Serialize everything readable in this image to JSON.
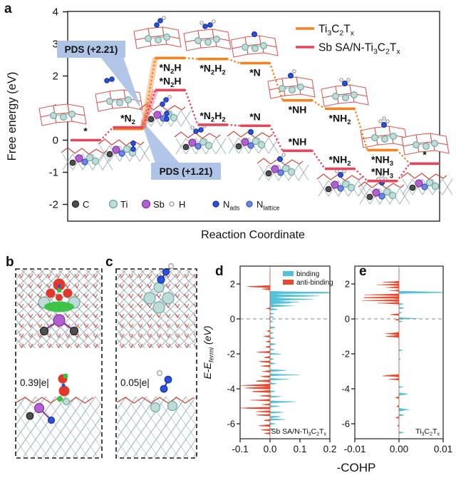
{
  "panel_labels": {
    "a": "a",
    "b": "b",
    "c": "c",
    "d": "d",
    "e": "e"
  },
  "panel_a": {
    "ylabel": "Free energy (eV)",
    "xlabel": "Reaction Coordinate",
    "yticks": [
      4,
      3,
      2,
      1,
      0,
      -1,
      -2
    ],
    "legend": [
      {
        "label": [
          "Ti",
          [
            "3"
          ],
          "C",
          [
            "2"
          ],
          "T",
          [
            "x"
          ]
        ],
        "color": "#F5821F"
      },
      {
        "label": [
          "Sb SA/N-Ti",
          [
            "3"
          ],
          "C",
          [
            "2"
          ],
          "T",
          [
            "x"
          ]
        ],
        "color": "#E6455A"
      }
    ],
    "pds": [
      {
        "text": "PDS (+2.21)",
        "color": "#F5821F"
      },
      {
        "text": "PDS (+1.21)",
        "color": "#E6455A"
      }
    ],
    "callout_bg": "#AEC3E6",
    "state_labels": [
      [
        "*"
      ],
      [
        "*N",
        [
          "2"
        ]
      ],
      [
        "*N",
        [
          "2"
        ],
        "H"
      ],
      [
        "*N",
        [
          "2"
        ],
        "H",
        [
          "2"
        ]
      ],
      [
        "*N"
      ],
      [
        "*NH"
      ],
      [
        "*NH",
        [
          "2"
        ]
      ],
      [
        "*NH",
        [
          "3"
        ]
      ],
      [
        "*"
      ]
    ],
    "atom_legend": [
      {
        "label": [
          "C"
        ],
        "fill": "#4F4F4F",
        "stroke": "#222222",
        "r": 4.5
      },
      {
        "label": [
          "Ti"
        ],
        "fill": "#BFDCD9",
        "stroke": "#6FA8A4",
        "r": 5.5
      },
      {
        "label": [
          "Sb"
        ],
        "fill": "#B15FD1",
        "stroke": "#84399F",
        "r": 5.5
      },
      {
        "label": [
          "H"
        ],
        "fill": "#FFFFFF",
        "stroke": "#999999",
        "r": 3
      },
      {
        "label": [
          "N",
          [
            "ads"
          ]
        ],
        "fill": "#2B50E0",
        "stroke": "#16339B",
        "r": 4
      },
      {
        "label": [
          "N",
          [
            "lattice"
          ]
        ],
        "fill": "#6E86E8",
        "stroke": "#3F55B8",
        "r": 4
      }
    ]
  },
  "panel_b": {
    "charge_label": "0.39|e|"
  },
  "panel_c": {
    "charge_label": "0.05|e|"
  },
  "cohp": {
    "xlabel": "-COHP",
    "ylabel": [
      "E-E",
      [
        "fermi"
      ],
      " (eV)"
    ],
    "yticks": [
      2,
      0,
      -2,
      -4,
      -6
    ],
    "legend": [
      {
        "label": "binding",
        "color": "#53C1D8"
      },
      {
        "label": "anti-binding",
        "color": "#E8492F"
      }
    ]
  },
  "panel_d": {
    "annotation": [
      "Sb SA/N-Ti",
      [
        "3"
      ],
      "C",
      [
        "2"
      ],
      "T",
      [
        "x"
      ]
    ],
    "xticks": [
      "-0.1",
      "0.0",
      "0.1",
      "0.2"
    ]
  },
  "panel_e": {
    "annotation": [
      "Ti",
      [
        "3"
      ],
      "C",
      [
        "2"
      ],
      "T",
      [
        "x"
      ]
    ],
    "xticks": [
      "-0.01",
      "0.00",
      "0.01"
    ]
  },
  "chart_data": [
    {
      "id": "a",
      "type": "line",
      "subtype": "free-energy-steps",
      "xlabel": "Reaction Coordinate",
      "ylabel": "Free energy (eV)",
      "categories": [
        "*",
        "*N2",
        "*N2H",
        "*N2H2",
        "*N",
        "*NH",
        "*NH2",
        "*NH3",
        "*"
      ],
      "ylim": [
        -2.5,
        4
      ],
      "grid": false,
      "legend_position": "top-right",
      "annotations": [
        "PDS (+2.21)",
        "PDS (+1.21)"
      ],
      "series": [
        {
          "name": "Ti3C2Tx",
          "color": "#F5821F",
          "values": [
            0.0,
            0.35,
            2.56,
            2.53,
            2.4,
            1.24,
            0.98,
            -0.31,
            -0.73
          ]
        },
        {
          "name": "Sb SA/N-Ti3C2Tx",
          "color": "#E6455A",
          "values": [
            0.0,
            0.35,
            1.56,
            0.48,
            0.45,
            -0.33,
            -0.89,
            -1.27,
            -0.73
          ]
        }
      ]
    },
    {
      "id": "d",
      "type": "area",
      "subtype": "cohp",
      "title": "Sb SA/N-Ti3C2Tx",
      "xlabel": "-COHP",
      "ylabel": "E-Efermi (eV)",
      "xlim": [
        -0.1,
        0.2
      ],
      "ylim": [
        -6.9,
        2.9
      ],
      "series": [
        {
          "name": "binding",
          "color": "#53C1D8",
          "peaks": [
            [
              1.5,
              0.28,
              0.07
            ],
            [
              1.32,
              0.16,
              0.09
            ],
            [
              1.12,
              0.13,
              0.1
            ],
            [
              0.95,
              0.12,
              0.09
            ],
            [
              0.75,
              0.07,
              0.08
            ],
            [
              0.55,
              0.025,
              0.06
            ],
            [
              0.3,
              0.012,
              0.05
            ],
            [
              0.1,
              0.018,
              0.05
            ],
            [
              -0.15,
              0.012,
              0.05
            ],
            [
              -0.5,
              0.022,
              0.06
            ],
            [
              -0.8,
              0.018,
              0.05
            ],
            [
              -1.1,
              0.022,
              0.05
            ],
            [
              -1.45,
              0.028,
              0.06
            ],
            [
              -1.75,
              0.02,
              0.05
            ],
            [
              -2.0,
              0.045,
              0.05
            ],
            [
              -2.3,
              0.022,
              0.05
            ],
            [
              -2.55,
              0.025,
              0.05
            ],
            [
              -2.95,
              0.06,
              0.07
            ],
            [
              -3.2,
              0.1,
              0.06
            ],
            [
              -3.45,
              0.055,
              0.06
            ],
            [
              -3.7,
              0.03,
              0.05
            ],
            [
              -4.15,
              0.025,
              0.05
            ],
            [
              -4.45,
              0.045,
              0.05
            ],
            [
              -4.75,
              0.1,
              0.06
            ],
            [
              -5.0,
              0.05,
              0.05
            ],
            [
              -5.35,
              0.045,
              0.05
            ],
            [
              -5.6,
              0.05,
              0.05
            ],
            [
              -5.75,
              0.07,
              0.05
            ],
            [
              -6.0,
              0.02,
              0.05
            ],
            [
              -6.3,
              0.015,
              0.05
            ]
          ]
        },
        {
          "name": "anti-binding",
          "color": "#E8492F",
          "peaks": [
            [
              1.85,
              -0.095,
              0.07
            ],
            [
              1.7,
              -0.03,
              0.05
            ],
            [
              0.6,
              -0.012,
              0.05
            ],
            [
              0.0,
              -0.008,
              0.04
            ],
            [
              -0.7,
              -0.012,
              0.05
            ],
            [
              -1.0,
              -0.022,
              0.05
            ],
            [
              -1.3,
              -0.02,
              0.05
            ],
            [
              -1.6,
              -0.025,
              0.05
            ],
            [
              -1.9,
              -0.05,
              0.05
            ],
            [
              -2.2,
              -0.03,
              0.05
            ],
            [
              -2.45,
              -0.05,
              0.05
            ],
            [
              -2.7,
              -0.035,
              0.05
            ],
            [
              -3.0,
              -0.03,
              0.05
            ],
            [
              -3.3,
              -0.04,
              0.05
            ],
            [
              -3.55,
              -0.065,
              0.06
            ],
            [
              -3.8,
              -0.1,
              0.07
            ],
            [
              -3.95,
              -0.115,
              0.06
            ],
            [
              -4.15,
              -0.085,
              0.06
            ],
            [
              -4.4,
              -0.045,
              0.05
            ],
            [
              -4.65,
              -0.055,
              0.05
            ],
            [
              -4.9,
              -0.03,
              0.05
            ],
            [
              -5.1,
              -0.15,
              0.05
            ],
            [
              -5.3,
              -0.05,
              0.05
            ],
            [
              -5.5,
              -0.065,
              0.05
            ],
            [
              -5.8,
              -0.03,
              0.05
            ],
            [
              -6.1,
              -0.05,
              0.06
            ],
            [
              -6.35,
              -0.035,
              0.05
            ],
            [
              -6.55,
              -0.02,
              0.05
            ]
          ]
        }
      ]
    },
    {
      "id": "e",
      "type": "area",
      "subtype": "cohp",
      "title": "Ti3C2Tx",
      "xlabel": "-COHP",
      "ylabel": "E-Efermi (eV)",
      "xlim": [
        -0.01,
        0.01
      ],
      "ylim": [
        -6.9,
        2.9
      ],
      "series": [
        {
          "name": "binding",
          "color": "#53C1D8",
          "peaks": [
            [
              1.52,
              0.014,
              0.06
            ],
            [
              0.85,
              0.0012,
              0.05
            ],
            [
              0.62,
              0.0015,
              0.05
            ],
            [
              0.35,
              0.0008,
              0.04
            ],
            [
              0.02,
              0.006,
              0.05
            ],
            [
              -0.15,
              0.001,
              0.04
            ],
            [
              -1.8,
              0.0008,
              0.05
            ],
            [
              -2.3,
              0.0006,
              0.05
            ],
            [
              -3.9,
              0.0008,
              0.05
            ],
            [
              -4.3,
              0.002,
              0.07
            ],
            [
              -5.2,
              0.0022,
              0.09
            ],
            [
              -5.5,
              0.0015,
              0.06
            ],
            [
              -6.5,
              0.0012,
              0.05
            ]
          ]
        },
        {
          "name": "anti-binding",
          "color": "#E8492F",
          "peaks": [
            [
              2.1,
              -0.003,
              0.05
            ],
            [
              1.95,
              -0.0045,
              0.05
            ],
            [
              1.8,
              -0.0035,
              0.05
            ],
            [
              1.62,
              -0.002,
              0.04
            ],
            [
              1.38,
              -0.007,
              0.06
            ],
            [
              1.22,
              -0.0095,
              0.06
            ],
            [
              1.05,
              -0.008,
              0.06
            ],
            [
              0.9,
              -0.004,
              0.05
            ],
            [
              0.25,
              -0.0022,
              0.05
            ],
            [
              -0.05,
              -0.001,
              0.04
            ],
            [
              -0.85,
              -0.0035,
              0.08
            ],
            [
              -1.0,
              -0.003,
              0.06
            ],
            [
              -3.25,
              -0.0042,
              0.07
            ],
            [
              -3.45,
              -0.002,
              0.05
            ],
            [
              -4.5,
              -0.0012,
              0.05
            ],
            [
              -5.0,
              -0.0008,
              0.05
            ],
            [
              -5.65,
              -0.001,
              0.05
            ],
            [
              -6.1,
              -0.0006,
              0.04
            ]
          ]
        }
      ]
    }
  ]
}
